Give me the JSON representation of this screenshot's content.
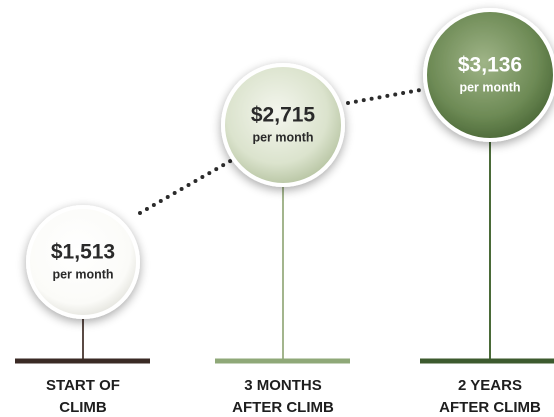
{
  "stages": [
    {
      "amount": "$1,513",
      "unit": "per month",
      "label": [
        "START OF",
        "CLIMB"
      ]
    },
    {
      "amount": "$2,715",
      "unit": "per month",
      "label": [
        "3 MONTHS",
        "AFTER CLIMB"
      ]
    },
    {
      "amount": "$3,136",
      "unit": "per month",
      "label": [
        "2 YEARS",
        "AFTER CLIMB"
      ]
    }
  ]
}
